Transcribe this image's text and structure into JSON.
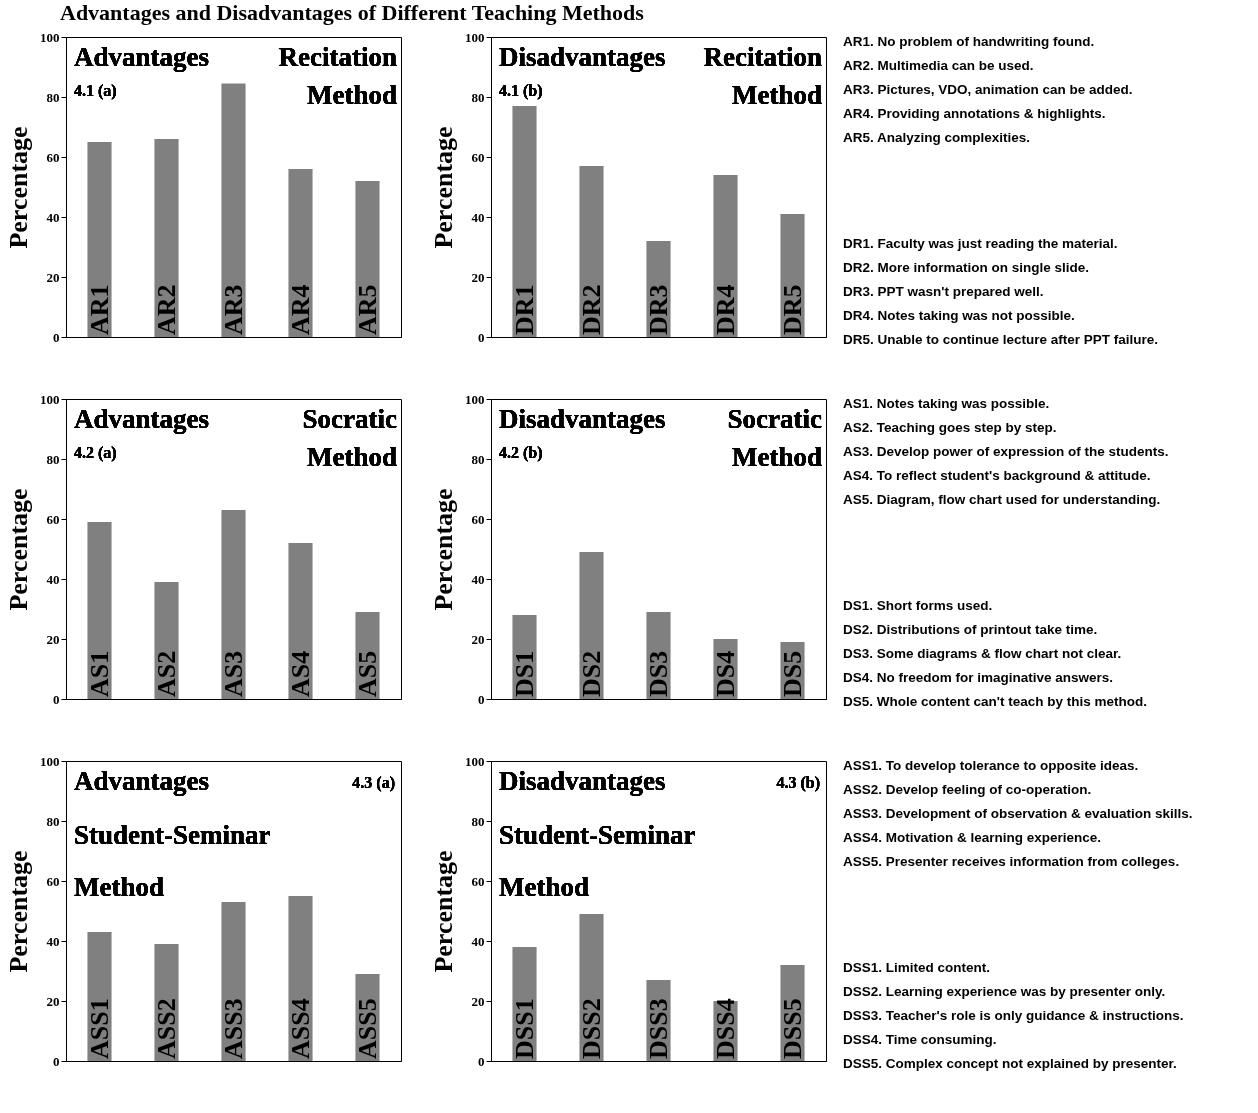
{
  "chart_data": [
    {
      "type": "bar",
      "title": "Advantages and Disadvantages of Different Teaching Methods",
      "ylabel": "Percentage",
      "categories": [
        "AR1",
        "AR2",
        "AR3",
        "AR4",
        "AR5"
      ],
      "values": [
        65,
        66,
        84.5,
        56,
        52
      ],
      "color": "#808080",
      "ylim": [
        0,
        100
      ],
      "yticks": [
        0,
        20,
        40,
        60,
        80,
        100
      ],
      "grid": false,
      "annotations": [
        "Advantages",
        "Recitation Method",
        "4.1 (a)",
        "AR1. No problem of handwriting found.",
        "AR2. Multimedia can be used.",
        "AR3. Pictures, VDO, animation can be added.",
        "AR4. Providing annotations & highlights.",
        "AR5. Analyzing complexities."
      ]
    },
    {
      "type": "bar",
      "ylabel": "Percentage",
      "categories": [
        "DR1",
        "DR2",
        "DR3",
        "DR4",
        "DR5"
      ],
      "values": [
        77,
        57,
        32,
        54,
        41
      ],
      "color": "#808080",
      "ylim": [
        0,
        100
      ],
      "yticks": [
        0,
        20,
        40,
        60,
        80,
        100
      ],
      "grid": false,
      "annotations": [
        "Disadvantages",
        "Recitation Method",
        "4.1 (b)",
        "DR1. Faculty was just reading the material.",
        "DR2. More information on single slide.",
        "DR3. PPT wasn't prepared well.",
        "DR4. Notes taking was not possible.",
        "DR5. Unable to continue lecture after PPT failure."
      ]
    },
    {
      "type": "bar",
      "ylabel": "Percentage",
      "categories": [
        "AS1",
        "AS2",
        "AS3",
        "AS4",
        "AS5"
      ],
      "values": [
        59,
        39,
        63,
        52,
        29
      ],
      "color": "#808080",
      "ylim": [
        0,
        100
      ],
      "yticks": [
        0,
        20,
        40,
        60,
        80,
        100
      ],
      "grid": false,
      "annotations": [
        "Advantages",
        "Socratic Method",
        "4.2 (a)",
        "AS1. Notes taking was possible.",
        "AS2. Teaching goes step by step.",
        "AS3. Develop power of expression of the students.",
        "AS4. To reflect student's background & attitude.",
        "AS5. Diagram, flow chart used for understanding."
      ]
    },
    {
      "type": "bar",
      "ylabel": "Percentage",
      "categories": [
        "DS1",
        "DS2",
        "DS3",
        "DS4",
        "DS5"
      ],
      "values": [
        28,
        49,
        29,
        20,
        19
      ],
      "color": "#808080",
      "ylim": [
        0,
        100
      ],
      "yticks": [
        0,
        20,
        40,
        60,
        80,
        100
      ],
      "grid": false,
      "annotations": [
        "Disadvantages",
        "Socratic Method",
        "4.2 (b)",
        "DS1. Short forms used.",
        "DS2. Distributions of printout take time.",
        "DS3. Some diagrams & flow chart not clear.",
        "DS4. No freedom for imaginative answers.",
        "DS5. Whole content can't teach by this method."
      ]
    },
    {
      "type": "bar",
      "ylabel": "Percentage",
      "categories": [
        "ASS1",
        "ASS2",
        "ASS3",
        "ASS4",
        "ASS5"
      ],
      "values": [
        43,
        39,
        53,
        55,
        29
      ],
      "color": "#808080",
      "ylim": [
        0,
        100
      ],
      "yticks": [
        0,
        20,
        40,
        60,
        80,
        100
      ],
      "grid": false,
      "annotations": [
        "Advantages",
        "Student-Seminar Method",
        "4.3 (a)",
        "ASS1. To develop tolerance to opposite ideas.",
        "ASS2. Develop feeling of co-operation.",
        "ASS3. Development of observation & evaluation skills.",
        "ASS4. Motivation & learning experience.",
        "ASS5. Presenter receives information from colleges."
      ]
    },
    {
      "type": "bar",
      "ylabel": "Percentage",
      "categories": [
        "DSS1",
        "DSS2",
        "DSS3",
        "DSS4",
        "DSS5"
      ],
      "values": [
        38,
        49,
        27,
        20,
        32
      ],
      "color": "#808080",
      "ylim": [
        0,
        100
      ],
      "yticks": [
        0,
        20,
        40,
        60,
        80,
        100
      ],
      "grid": false,
      "annotations": [
        "Disadvantages",
        "Student-Seminar Method",
        "4.3 (b)",
        "DSS1. Limited content.",
        "DSS2. Learning experience was by presenter only.",
        "DSS3. Teacher's role is only guidance & instructions.",
        "DSS4. Time consuming.",
        "DSS5. Complex concept not explained by presenter."
      ]
    }
  ]
}
